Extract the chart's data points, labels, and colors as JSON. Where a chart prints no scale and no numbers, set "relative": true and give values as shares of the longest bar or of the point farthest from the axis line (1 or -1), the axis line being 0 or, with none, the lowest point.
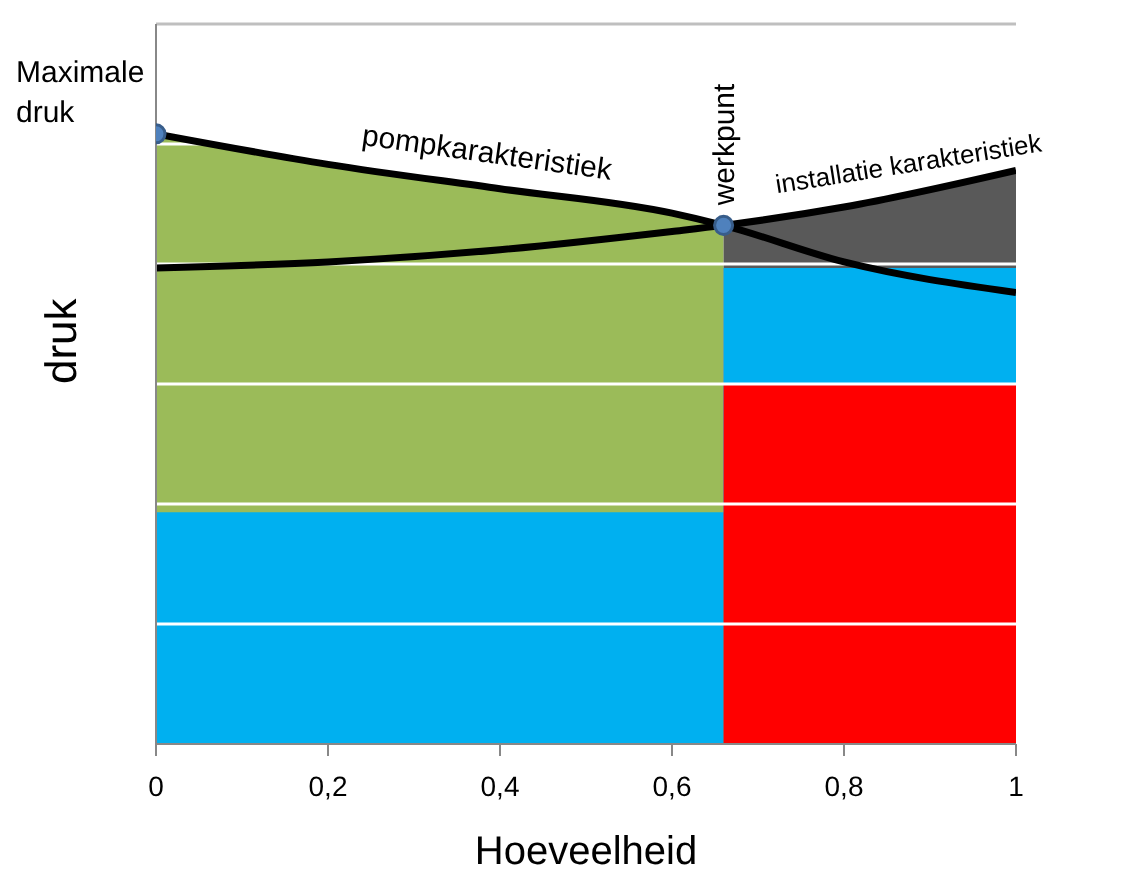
{
  "chart_data": {
    "type": "area",
    "relative": true,
    "xlabel": "Hoeveelheid",
    "ylabel": "druk",
    "xlim": [
      0,
      1
    ],
    "xticks": [
      0,
      {
        "value": 0.2,
        "label": "0,2"
      },
      {
        "value": 0.4,
        "label": "0,4"
      },
      {
        "value": 0.6,
        "label": "0,6"
      },
      {
        "value": 0.8,
        "label": "0,8"
      },
      1
    ],
    "grid": "y",
    "marker": "none",
    "line_style": "solid",
    "series": [
      {
        "color": "#9bbb59",
        "x": [
          0,
          0.2,
          0.4,
          0.6,
          0.66
        ],
        "values": [
          1,
          0.95,
          0.91,
          0.87,
          0.85
        ]
      },
      {
        "type": "area",
        "color": "#00b0f0",
        "x": [
          0,
          0.66
        ],
        "values": [
          0.38,
          0.38
        ]
      },
      {
        "type": "area",
        "color": "#595959",
        "x": [
          0.66,
          0.8,
          1
        ],
        "values": [
          0.85,
          0.88,
          0.94
        ]
      },
      {
        "type": "area",
        "color": "#00b0f0",
        "x": [
          0.66,
          1
        ],
        "values": [
          0.78,
          0.78
        ]
      },
      {
        "type": "area",
        "color": "#ff0000",
        "x": [
          0.66,
          1
        ],
        "values": [
          0.59,
          0.59
        ]
      },
      {
        "type": "line",
        "name": "pompkarakteristiek",
        "color": "#000000",
        "x": [
          0,
          0.2,
          0.4,
          0.6,
          0.66,
          0.8,
          1
        ],
        "values": [
          1,
          0.95,
          0.91,
          0.87,
          0.85,
          0.79,
          0.74
        ]
      },
      {
        "type": "line",
        "name": "installatie karakteristiek",
        "color": "#000000",
        "x": [
          0,
          0.2,
          0.4,
          0.6,
          0.66,
          0.8,
          1
        ],
        "values": [
          0.78,
          0.79,
          0.81,
          0.84,
          0.85,
          0.88,
          0.94
        ]
      },
      {
        "type": "scatter",
        "marker": "circle",
        "color": "#4f81bd",
        "x": [
          0,
          0.66
        ],
        "values": [
          1,
          0.85
        ]
      }
    ],
    "annotations": [
      {
        "text": "Maximale druk",
        "x": 0,
        "y": 1
      },
      {
        "text": "werkpunt",
        "x": 0.66,
        "y": 0.85
      }
    ]
  }
}
